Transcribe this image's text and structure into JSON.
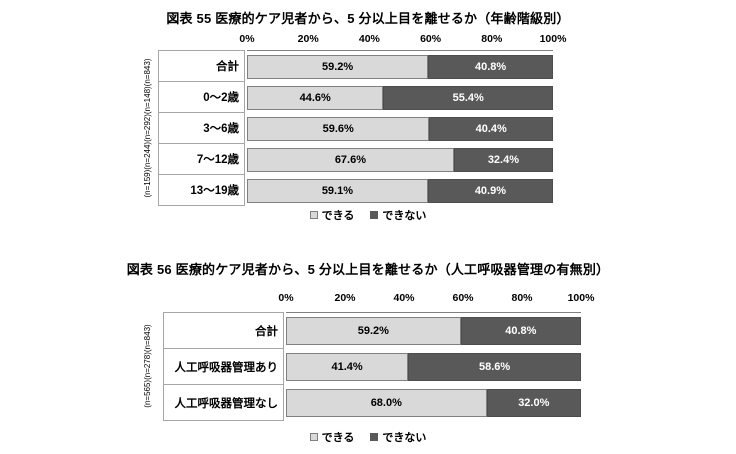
{
  "colors": {
    "can_fill": "#d9d9d9",
    "cannot_fill": "#595959",
    "bar_border": "#808080",
    "cell_border": "#a6a6a6",
    "axis_line": "#808080",
    "value_on_dark": "#ffffff"
  },
  "chart_data": [
    {
      "type": "bar",
      "stacked": true,
      "orientation": "horizontal",
      "title": "図表 55 医療的ケア児者から、5 分以上目を離せるか（年齢階級別）",
      "categories": [
        "合計",
        "0〜2歳",
        "3〜6歳",
        "7〜12歳",
        "13〜19歳"
      ],
      "n_labels": [
        "(n=843)",
        "(n=148)",
        "(n=292)",
        "(n=244)",
        "(n=159)"
      ],
      "series": [
        {
          "name": "できる",
          "values": [
            59.2,
            44.6,
            59.6,
            67.6,
            59.1
          ]
        },
        {
          "name": "できない",
          "values": [
            40.8,
            55.4,
            40.4,
            32.4,
            40.9
          ]
        }
      ],
      "x_ticks": [
        "0%",
        "20%",
        "40%",
        "60%",
        "80%",
        "100%"
      ],
      "xlim": [
        0,
        100
      ],
      "grid": false,
      "legend_position": "bottom"
    },
    {
      "type": "bar",
      "stacked": true,
      "orientation": "horizontal",
      "title": "図表 56 医療的ケア児者から、5 分以上目を離せるか（人工呼吸器管理の有無別）",
      "categories": [
        "合計",
        "人工呼吸器管理あり",
        "人工呼吸器管理なし"
      ],
      "n_labels": [
        "(n=843)",
        "(n=278)",
        "(n=565)"
      ],
      "series": [
        {
          "name": "できる",
          "values": [
            59.2,
            41.4,
            68.0
          ]
        },
        {
          "name": "できない",
          "values": [
            40.8,
            58.6,
            32.0
          ]
        }
      ],
      "x_ticks": [
        "0%",
        "20%",
        "40%",
        "60%",
        "80%",
        "100%"
      ],
      "xlim": [
        0,
        100
      ],
      "grid": false,
      "legend_position": "bottom"
    }
  ]
}
